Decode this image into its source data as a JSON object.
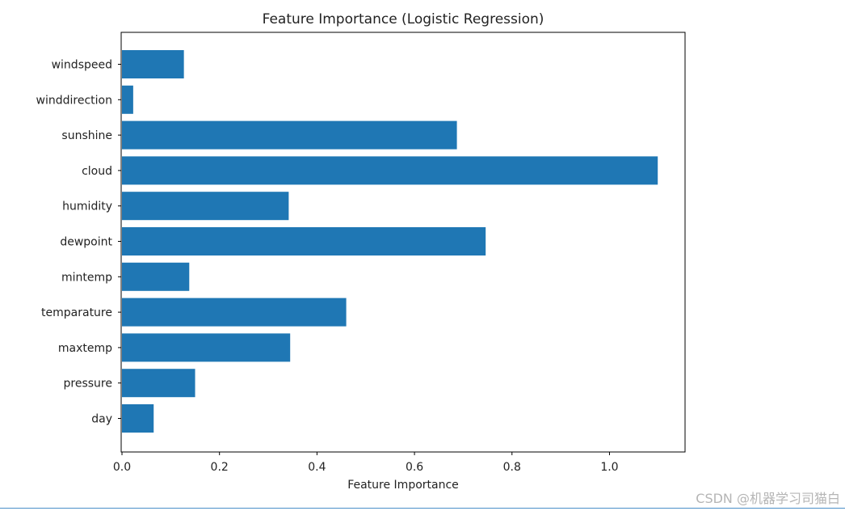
{
  "chart_data": {
    "type": "bar",
    "orientation": "horizontal",
    "title": "Feature Importance (Logistic Regression)",
    "xlabel": "Feature Importance",
    "ylabel": "",
    "categories": [
      "day",
      "pressure",
      "maxtemp",
      "temparature",
      "mintemp",
      "dewpoint",
      "humidity",
      "cloud",
      "sunshine",
      "winddirection",
      "windspeed"
    ],
    "values": [
      0.065,
      0.15,
      0.345,
      0.46,
      0.138,
      0.746,
      0.342,
      1.099,
      0.687,
      0.023,
      0.127
    ],
    "xlim": [
      0.0,
      1.155
    ],
    "xticks": [
      0.0,
      0.2,
      0.4,
      0.6,
      0.8,
      1.0
    ],
    "xtick_labels": [
      "0.0",
      "0.2",
      "0.4",
      "0.6",
      "0.8",
      "1.0"
    ],
    "grid": false,
    "bar_color": "#1f77b4"
  },
  "watermark": "CSDN @机器学习司猫白",
  "colors": {
    "bar": "#1f77b4",
    "axes": "#000000",
    "rule": "#4a90c8"
  }
}
